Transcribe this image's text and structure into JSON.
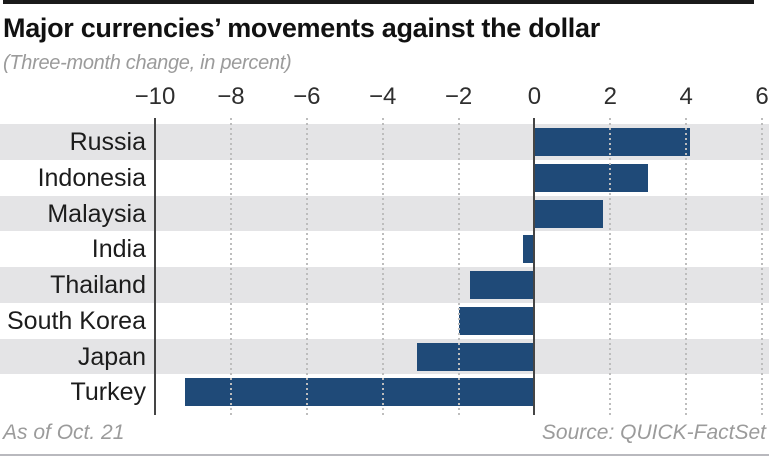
{
  "colors": {
    "bar": "#1f4a78",
    "row_band": "#e4e4e6",
    "grid_dots": "#bdbdbd",
    "axis_line": "#454545",
    "top_bar": "#1a1a1a",
    "title_text": "#111111",
    "muted_text": "#9b9b9b",
    "tick_text": "#2e2e2e",
    "bottom_rule": "#b9b9be"
  },
  "footer": {
    "as_of": "As of Oct. 21",
    "source": "Source: QUICK-FactSet"
  },
  "chart_data": {
    "type": "bar",
    "orientation": "horizontal",
    "title": "Major currencies’ movements against the dollar",
    "subtitle": "(Three-month change, in percent)",
    "categories": [
      "Russia",
      "Indonesia",
      "Malaysia",
      "India",
      "Thailand",
      "South Korea",
      "Japan",
      "Turkey"
    ],
    "values": [
      4.1,
      3.0,
      1.8,
      -0.3,
      -1.7,
      -2.0,
      -3.1,
      -9.2
    ],
    "unit": "percent",
    "xlabel": "",
    "ylabel": "",
    "xlim": [
      -10,
      6
    ],
    "xticks": [
      -10,
      -8,
      -6,
      -4,
      -2,
      0,
      2,
      4,
      6
    ],
    "xtick_labels": [
      "−10",
      "−8",
      "−6",
      "−4",
      "−2",
      "0",
      "2",
      "4",
      "6"
    ],
    "grid": "dotted-vertical",
    "zero_line_at": 0,
    "axis_line_at": -10,
    "row_banding": "alternating-gray-starting-first-row",
    "legend": "none"
  }
}
